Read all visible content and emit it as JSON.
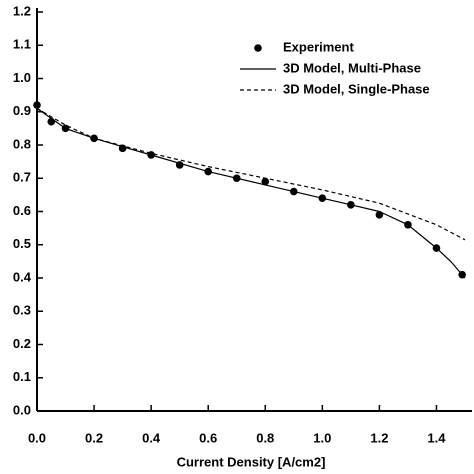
{
  "chart_data": {
    "type": "line",
    "x_label": "Current Density [A/cm2]",
    "xlim": [
      0,
      1.5
    ],
    "ylim": [
      0,
      1.2
    ],
    "xticks": [
      {
        "value": 0,
        "label": "0.0"
      },
      {
        "value": 0.2,
        "label": "0.2"
      },
      {
        "value": 0.4,
        "label": "0.4"
      },
      {
        "value": 0.6,
        "label": "0.6"
      },
      {
        "value": 0.8,
        "label": "0.8"
      },
      {
        "value": 1.0,
        "label": "1.0"
      },
      {
        "value": 1.2,
        "label": "1.2"
      },
      {
        "value": 1.4,
        "label": "1.4"
      }
    ],
    "yticks": [
      {
        "value": 0,
        "label": "0.0"
      },
      {
        "value": 0.1,
        "label": "0.1"
      },
      {
        "value": 0.2,
        "label": "0.2"
      },
      {
        "value": 0.3,
        "label": "0.3"
      },
      {
        "value": 0.4,
        "label": "0.4"
      },
      {
        "value": 0.5,
        "label": "0.5"
      },
      {
        "value": 0.6,
        "label": "0.6"
      },
      {
        "value": 0.7,
        "label": "0.7"
      },
      {
        "value": 0.8,
        "label": "0.8"
      },
      {
        "value": 0.9,
        "label": "0.9"
      },
      {
        "value": 1.0,
        "label": "1.0"
      },
      {
        "value": 1.1,
        "label": "1.1"
      },
      {
        "value": 1.2,
        "label": "1.2"
      }
    ],
    "legend": "upper right",
    "series": [
      {
        "name": "Experiment",
        "style": "marker",
        "color": "#000000",
        "x": [
          0,
          0.05,
          0.1,
          0.2,
          0.3,
          0.4,
          0.5,
          0.6,
          0.7,
          0.8,
          0.9,
          1.0,
          1.1,
          1.2,
          1.3,
          1.4,
          1.49
        ],
        "values": [
          0.92,
          0.87,
          0.85,
          0.82,
          0.79,
          0.77,
          0.74,
          0.72,
          0.7,
          0.69,
          0.66,
          0.64,
          0.62,
          0.59,
          0.56,
          0.49,
          0.41
        ]
      },
      {
        "name": "3D Model, Multi-Phase",
        "style": "solid",
        "color": "#000000",
        "x": [
          0,
          0.1,
          0.2,
          0.4,
          0.6,
          0.8,
          1.0,
          1.1,
          1.2,
          1.3,
          1.4,
          1.45,
          1.5
        ],
        "values": [
          0.91,
          0.85,
          0.82,
          0.77,
          0.72,
          0.68,
          0.64,
          0.62,
          0.6,
          0.56,
          0.49,
          0.45,
          0.4
        ]
      },
      {
        "name": "3D Model, Single-Phase",
        "style": "dashed",
        "color": "#000000",
        "x": [
          0,
          0.1,
          0.2,
          0.4,
          0.6,
          0.8,
          1.0,
          1.2,
          1.4,
          1.5
        ],
        "values": [
          0.91,
          0.86,
          0.82,
          0.775,
          0.735,
          0.7,
          0.665,
          0.625,
          0.56,
          0.515
        ]
      }
    ]
  }
}
